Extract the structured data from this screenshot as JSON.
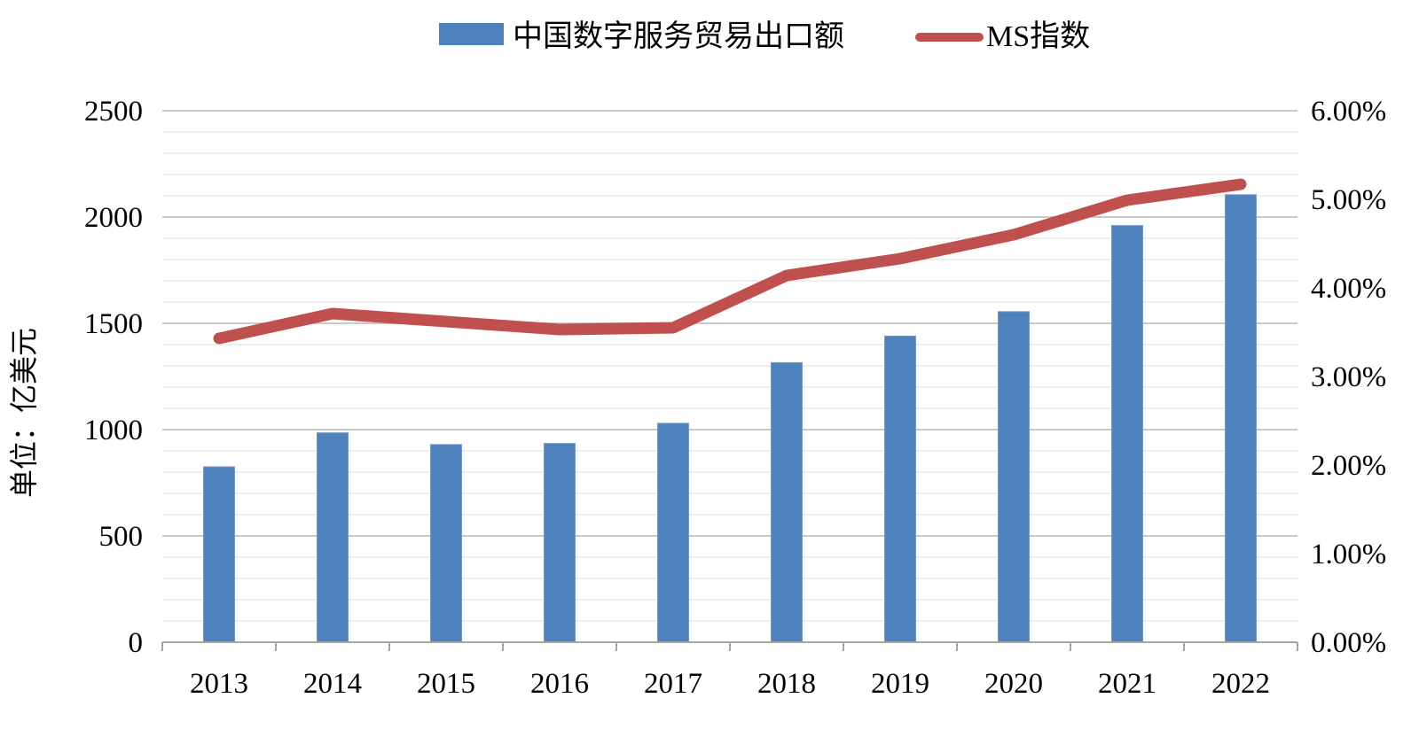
{
  "chart_data": {
    "type": "bar",
    "subtype": "combo-bar-line-dual-axis",
    "categories": [
      "2013",
      "2014",
      "2015",
      "2016",
      "2017",
      "2018",
      "2019",
      "2020",
      "2021",
      "2022"
    ],
    "series": [
      {
        "name": "中国数字服务贸易出口额",
        "type": "bar",
        "axis": "left",
        "color": "#4F81BD",
        "values": [
          825,
          985,
          930,
          935,
          1030,
          1315,
          1440,
          1555,
          1960,
          2105
        ]
      },
      {
        "name": "MS指数",
        "type": "line",
        "axis": "right",
        "color": "#C0504D",
        "values": [
          3.43,
          3.71,
          3.62,
          3.53,
          3.55,
          4.14,
          4.33,
          4.6,
          4.99,
          5.17
        ]
      }
    ],
    "left_axis": {
      "title": "单位：亿美元",
      "min": 0,
      "max": 2500,
      "major_step": 500,
      "minor_step": 100,
      "tick_labels": [
        "0",
        "500",
        "1000",
        "1500",
        "2000",
        "2500"
      ]
    },
    "right_axis": {
      "min": 0,
      "max": 6,
      "major_step": 1,
      "tick_labels": [
        "0.00%",
        "1.00%",
        "2.00%",
        "3.00%",
        "4.00%",
        "5.00%",
        "6.00%"
      ]
    },
    "legend": {
      "position": "top-center",
      "entries": [
        {
          "label": "中国数字服务贸易出口额",
          "swatch": "bar",
          "color": "#4F81BD"
        },
        {
          "label": "MS指数",
          "swatch": "line",
          "color": "#C0504D"
        }
      ]
    },
    "grid": {
      "minor_color": "#E8E8E8",
      "major_color": "#C9C9C9",
      "axis_line_color": "#A6A6A6",
      "background": "#FFFFFF",
      "horizontal_gridlines": true
    }
  }
}
